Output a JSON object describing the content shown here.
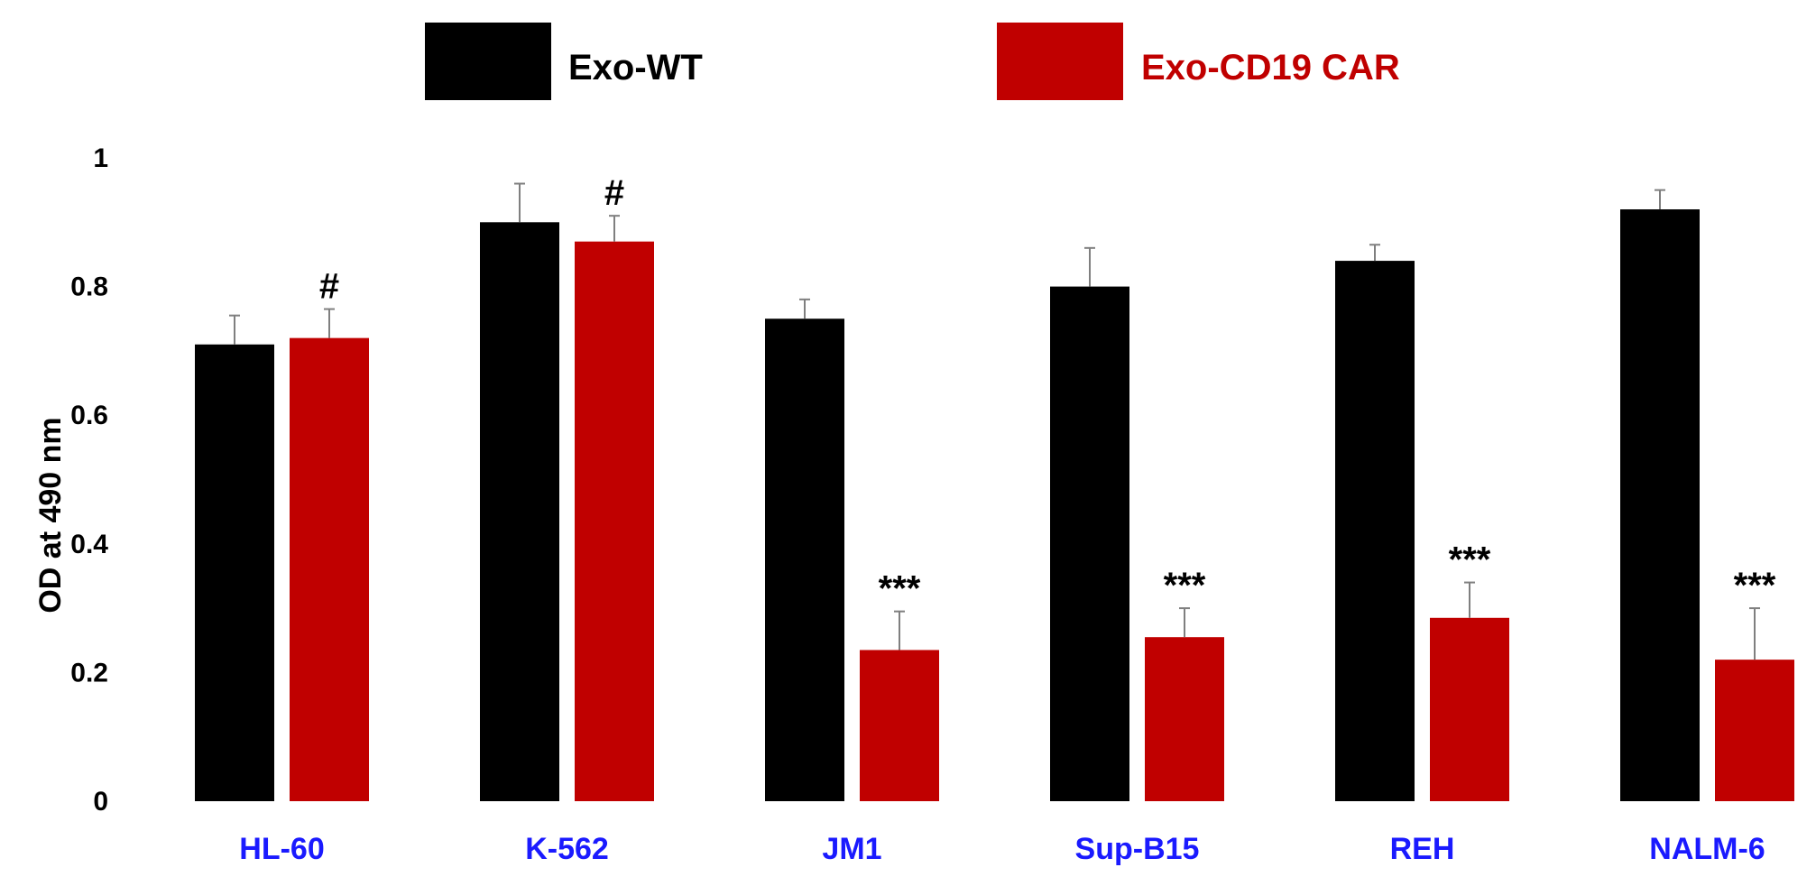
{
  "chart_data": {
    "type": "bar",
    "title": "",
    "xlabel": "",
    "ylabel": "OD at 490 nm",
    "ylim": [
      0,
      1
    ],
    "yticks": [
      "0",
      "0.2",
      "0.4",
      "0.6",
      "0.8",
      "1"
    ],
    "ytick_values": [
      0,
      0.2,
      0.4,
      0.6,
      0.8,
      1
    ],
    "categories": [
      "HL-60",
      "K-562",
      "JM1",
      "Sup-B15",
      "REH",
      "NALM-6"
    ],
    "category_label_color": "#1a1aff",
    "grid": false,
    "legend_position": "top",
    "series": [
      {
        "name": "Exo-WT",
        "color": "#000000",
        "label_color": "#000000",
        "values": [
          0.71,
          0.9,
          0.75,
          0.8,
          0.84,
          0.92
        ],
        "errors": [
          0.045,
          0.06,
          0.03,
          0.06,
          0.025,
          0.03
        ],
        "annotations": [
          "",
          "",
          "",
          "",
          "",
          ""
        ]
      },
      {
        "name": "Exo-CD19 CAR",
        "color": "#c00000",
        "label_color": "#c00000",
        "values": [
          0.72,
          0.87,
          0.235,
          0.255,
          0.285,
          0.22
        ],
        "errors": [
          0.045,
          0.04,
          0.06,
          0.045,
          0.055,
          0.08
        ],
        "annotations": [
          "#",
          "#",
          "***",
          "***",
          "***",
          "***"
        ]
      }
    ]
  }
}
